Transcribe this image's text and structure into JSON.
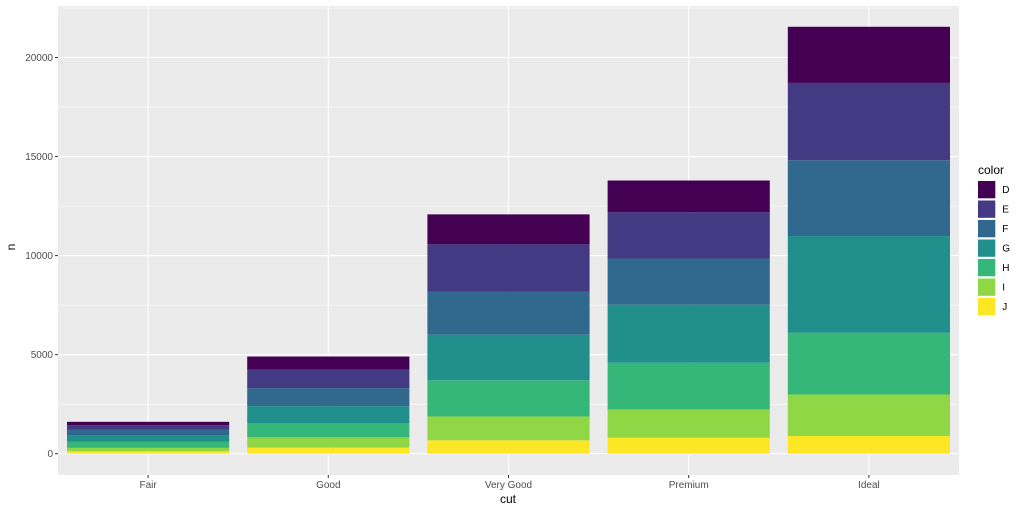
{
  "chart_data": {
    "type": "bar",
    "stacked": true,
    "xlabel": "cut",
    "ylabel": "n",
    "categories": [
      "Fair",
      "Good",
      "Very Good",
      "Premium",
      "Ideal"
    ],
    "ylim": [
      -1075,
      22600
    ],
    "yticks": [
      0,
      5000,
      10000,
      15000,
      20000
    ],
    "grid": true,
    "legend": {
      "title": "color",
      "position": "right"
    },
    "series": [
      {
        "name": "D",
        "color": "#440154",
        "values": [
          163,
          662,
          1513,
          1603,
          2834
        ]
      },
      {
        "name": "E",
        "color": "#443A83",
        "values": [
          224,
          933,
          2400,
          2337,
          3903
        ]
      },
      {
        "name": "F",
        "color": "#31688E",
        "values": [
          312,
          909,
          2164,
          2331,
          3826
        ]
      },
      {
        "name": "G",
        "color": "#21908C",
        "values": [
          314,
          871,
          2299,
          2924,
          4884
        ]
      },
      {
        "name": "H",
        "color": "#35B779",
        "values": [
          303,
          702,
          1824,
          2360,
          3115
        ]
      },
      {
        "name": "I",
        "color": "#8FD744",
        "values": [
          175,
          522,
          1204,
          1428,
          2093
        ]
      },
      {
        "name": "J",
        "color": "#FDE725",
        "values": [
          119,
          307,
          678,
          808,
          896
        ]
      }
    ]
  }
}
